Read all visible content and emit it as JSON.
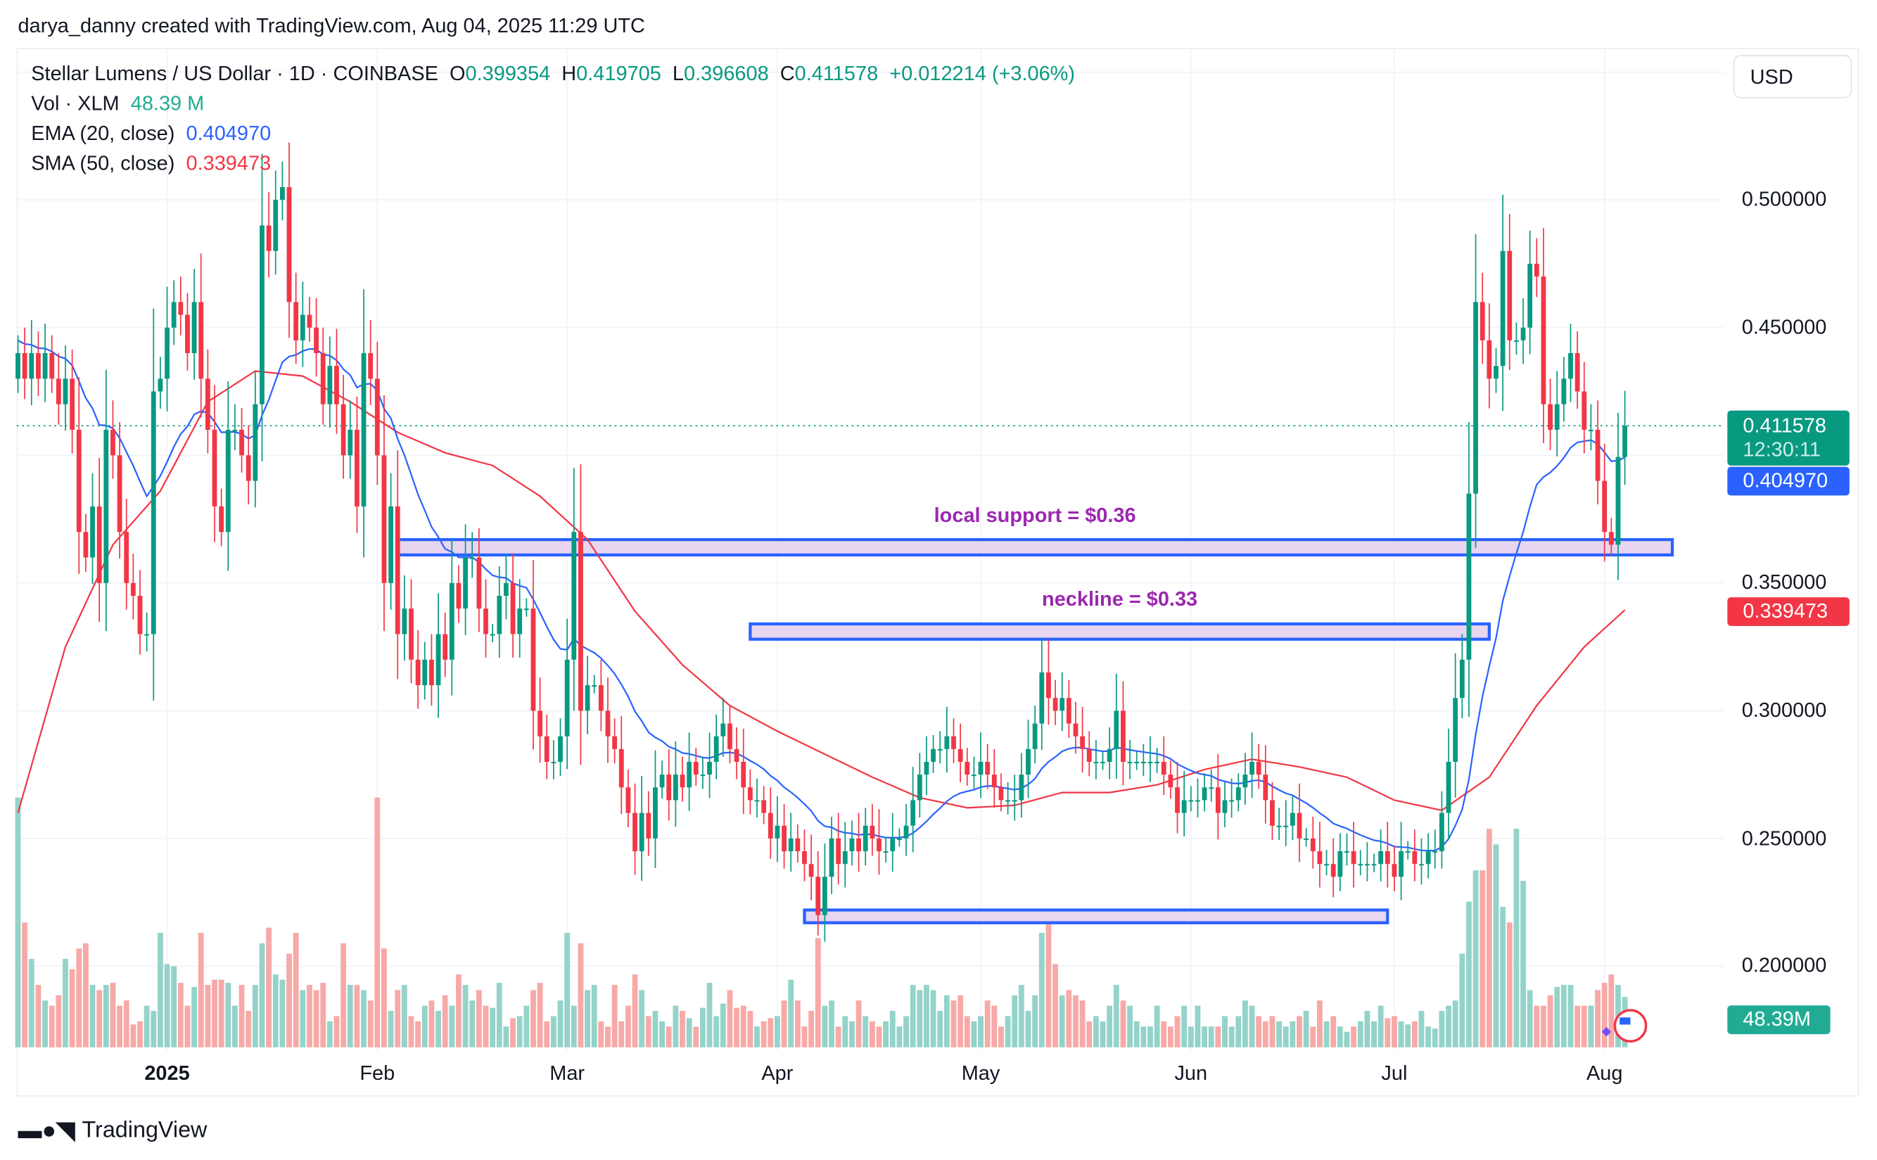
{
  "attribution": "darya_danny created with TradingView.com, Aug 04, 2025 11:29 UTC",
  "legend": {
    "symbol": "Stellar Lumens / US Dollar · 1D · COINBASE",
    "o_label": "O",
    "o": "0.399354",
    "h_label": "H",
    "h": "0.419705",
    "l_label": "L",
    "l": "0.396608",
    "c_label": "C",
    "c": "0.411578",
    "change": "+0.012214 (+3.06%)",
    "vol_label": "Vol · XLM",
    "vol": "48.39 M",
    "ema_label": "EMA (20, close)",
    "ema": "0.404970",
    "sma_label": "SMA (50, close)",
    "sma": "0.339473"
  },
  "currency_button": "USD",
  "price_tags": {
    "last_price": "0.411578",
    "countdown": "12:30:11",
    "ema": "0.404970",
    "sma": "0.339473",
    "volume": "48.39M"
  },
  "colors": {
    "up": "#089981",
    "down": "#f23645",
    "ema": "#2962ff",
    "sma": "#f23645",
    "annotation": "#9c27b0",
    "zone_fill": "#e8d5f0",
    "zone_border": "#2962ff"
  },
  "annotations": {
    "local_support": {
      "label": "local support =  $0.36",
      "price_low": 0.361,
      "price_high": 0.367,
      "from": "2025-02-04",
      "to": "2025-08-11"
    },
    "neckline": {
      "label": "neckline = $0.33",
      "price_low": 0.328,
      "price_high": 0.334,
      "from": "2025-03-28",
      "to": "2025-07-15"
    },
    "bottom_zone": {
      "price_low": 0.217,
      "price_high": 0.222,
      "from": "2025-04-05",
      "to": "2025-06-30"
    }
  },
  "footer_logo": "TradingView",
  "chart_data": {
    "type": "candlestick",
    "title": "Stellar Lumens / US Dollar · 1D · COINBASE",
    "ylim": [
      0.18,
      0.53
    ],
    "y_ticks": [
      "0.500000",
      "0.450000",
      "0.350000",
      "0.300000",
      "0.250000",
      "0.200000"
    ],
    "y_tick_values": [
      0.5,
      0.45,
      0.35,
      0.3,
      0.25,
      0.2
    ],
    "x_ticks": [
      {
        "label": "2025",
        "date": "2025-01-01"
      },
      {
        "label": "Feb",
        "date": "2025-02-01"
      },
      {
        "label": "Mar",
        "date": "2025-03-01"
      },
      {
        "label": "Apr",
        "date": "2025-04-01"
      },
      {
        "label": "May",
        "date": "2025-05-01"
      },
      {
        "label": "Jun",
        "date": "2025-06-01"
      },
      {
        "label": "Jul",
        "date": "2025-07-01"
      },
      {
        "label": "Aug",
        "date": "2025-08-01"
      }
    ],
    "grid": true,
    "current_price": 0.411578,
    "months": [
      {
        "month": "2024-12",
        "first_day": 10,
        "close": [
          0.44,
          0.43,
          0.44,
          0.43,
          0.44,
          0.43,
          0.42,
          0.43,
          0.41,
          0.37,
          0.36,
          0.38,
          0.35,
          0.41,
          0.4,
          0.37,
          0.35,
          0.345,
          0.33,
          0.33,
          0.425,
          0.43
        ],
        "volume_m": [
          240,
          120,
          85,
          60,
          45,
          40,
          50,
          85,
          75,
          95,
          100,
          60,
          55,
          60,
          62,
          40,
          45,
          22,
          25,
          40,
          35,
          110
        ]
      },
      {
        "month": "2025-01",
        "first_day": 1,
        "close": [
          0.45,
          0.46,
          0.455,
          0.44,
          0.46,
          0.43,
          0.41,
          0.38,
          0.37,
          0.41,
          0.41,
          0.4,
          0.39,
          0.42,
          0.49,
          0.48,
          0.5,
          0.505,
          0.46,
          0.445,
          0.455,
          0.45,
          0.44,
          0.42,
          0.435,
          0.42,
          0.4,
          0.41,
          0.38,
          0.44,
          0.43
        ],
        "volume_m": [
          80,
          78,
          62,
          40,
          58,
          110,
          60,
          65,
          65,
          62,
          40,
          60,
          35,
          60,
          100,
          115,
          70,
          65,
          90,
          110,
          55,
          60,
          55,
          62,
          25,
          30,
          100,
          60,
          60,
          55,
          45
        ]
      },
      {
        "month": "2025-02",
        "first_day": 1,
        "close": [
          0.4,
          0.35,
          0.38,
          0.33,
          0.34,
          0.32,
          0.31,
          0.32,
          0.31,
          0.33,
          0.32,
          0.35,
          0.34,
          0.36,
          0.36,
          0.34,
          0.33,
          0.33,
          0.345,
          0.35,
          0.33,
          0.34,
          0.34,
          0.3,
          0.29,
          0.28,
          0.28,
          0.29
        ],
        "volume_m": [
          240,
          95,
          35,
          55,
          60,
          30,
          25,
          40,
          45,
          35,
          50,
          40,
          70,
          60,
          45,
          55,
          40,
          38,
          62,
          20,
          28,
          30,
          40,
          55,
          62,
          25,
          30,
          45
        ]
      },
      {
        "month": "2025-03",
        "first_day": 1,
        "close": [
          0.32,
          0.37,
          0.3,
          0.31,
          0.31,
          0.3,
          0.29,
          0.285,
          0.27,
          0.26,
          0.245,
          0.26,
          0.25,
          0.27,
          0.275,
          0.265,
          0.275,
          0.27,
          0.28,
          0.275,
          0.275,
          0.28,
          0.29,
          0.295,
          0.285,
          0.28,
          0.27,
          0.265,
          0.265,
          0.26,
          0.25
        ],
        "volume_m": [
          110,
          40,
          100,
          55,
          60,
          25,
          20,
          60,
          25,
          40,
          70,
          55,
          30,
          35,
          25,
          20,
          40,
          35,
          28,
          20,
          38,
          62,
          30,
          42,
          55,
          38,
          40,
          35,
          20,
          25,
          28
        ]
      },
      {
        "month": "2025-04",
        "first_day": 1,
        "close": [
          0.255,
          0.245,
          0.25,
          0.245,
          0.24,
          0.235,
          0.22,
          0.235,
          0.25,
          0.24,
          0.245,
          0.25,
          0.245,
          0.255,
          0.25,
          0.245,
          0.245,
          0.25,
          0.25,
          0.255,
          0.265,
          0.275,
          0.28,
          0.285,
          0.285,
          0.29,
          0.285,
          0.28,
          0.275,
          0.275
        ],
        "volume_m": [
          30,
          45,
          65,
          45,
          20,
          35,
          105,
          40,
          45,
          20,
          30,
          25,
          45,
          30,
          25,
          20,
          25,
          35,
          20,
          30,
          60,
          55,
          60,
          55,
          35,
          50,
          45,
          50,
          30,
          25
        ]
      },
      {
        "month": "2025-05",
        "first_day": 1,
        "close": [
          0.28,
          0.275,
          0.27,
          0.265,
          0.265,
          0.265,
          0.275,
          0.285,
          0.295,
          0.315,
          0.305,
          0.3,
          0.305,
          0.295,
          0.29,
          0.285,
          0.28,
          0.28,
          0.28,
          0.285,
          0.3,
          0.28,
          0.28,
          0.28,
          0.28,
          0.28,
          0.28,
          0.275,
          0.27,
          0.26,
          0.265
        ],
        "volume_m": [
          30,
          45,
          40,
          20,
          30,
          50,
          60,
          35,
          50,
          110,
          125,
          80,
          50,
          55,
          50,
          45,
          25,
          30,
          25,
          40,
          60,
          45,
          40,
          25,
          20,
          20,
          40,
          25,
          20,
          30,
          40
        ]
      },
      {
        "month": "2025-06",
        "first_day": 1,
        "close": [
          0.265,
          0.265,
          0.27,
          0.27,
          0.26,
          0.265,
          0.265,
          0.27,
          0.275,
          0.28,
          0.275,
          0.265,
          0.255,
          0.255,
          0.255,
          0.26,
          0.25,
          0.25,
          0.245,
          0.24,
          0.24,
          0.235,
          0.245,
          0.245,
          0.24,
          0.24,
          0.24,
          0.24,
          0.245,
          0.24
        ],
        "volume_m": [
          20,
          40,
          20,
          20,
          20,
          30,
          20,
          30,
          45,
          40,
          30,
          25,
          30,
          25,
          20,
          25,
          30,
          35,
          20,
          45,
          25,
          30,
          20,
          15,
          20,
          25,
          35,
          25,
          40,
          28
        ]
      },
      {
        "month": "2025-07",
        "first_day": 1,
        "close": [
          0.235,
          0.245,
          0.245,
          0.24,
          0.24,
          0.245,
          0.245,
          0.26,
          0.28,
          0.305,
          0.32,
          0.385,
          0.46,
          0.445,
          0.43,
          0.435,
          0.48,
          0.445,
          0.445,
          0.45,
          0.475,
          0.47,
          0.42,
          0.41,
          0.42,
          0.43,
          0.44,
          0.425,
          0.41,
          0.41,
          0.39
        ],
        "volume_m": [
          30,
          25,
          22,
          25,
          35,
          20,
          18,
          35,
          40,
          45,
          90,
          140,
          170,
          170,
          210,
          195,
          135,
          120,
          210,
          160,
          55,
          40,
          40,
          50,
          58,
          60,
          60,
          40,
          40,
          40,
          55
        ]
      },
      {
        "month": "2025-08",
        "first_day": 1,
        "close": [
          0.37,
          0.365,
          0.399354,
          0.411578
        ],
        "volume_m": [
          62,
          70,
          60,
          48.39
        ]
      }
    ],
    "first_open": 0.43,
    "sma50_weekly": [
      0.26,
      0.325,
      0.365,
      0.386,
      0.421,
      0.433,
      0.431,
      0.421,
      0.409,
      0.401,
      0.396,
      0.384,
      0.367,
      0.339,
      0.318,
      0.302,
      0.292,
      0.283,
      0.274,
      0.266,
      0.262,
      0.263,
      0.268,
      0.268,
      0.271,
      0.277,
      0.281,
      0.278,
      0.274,
      0.265,
      0.261,
      0.274,
      0.302,
      0.325,
      0.339473
    ]
  }
}
